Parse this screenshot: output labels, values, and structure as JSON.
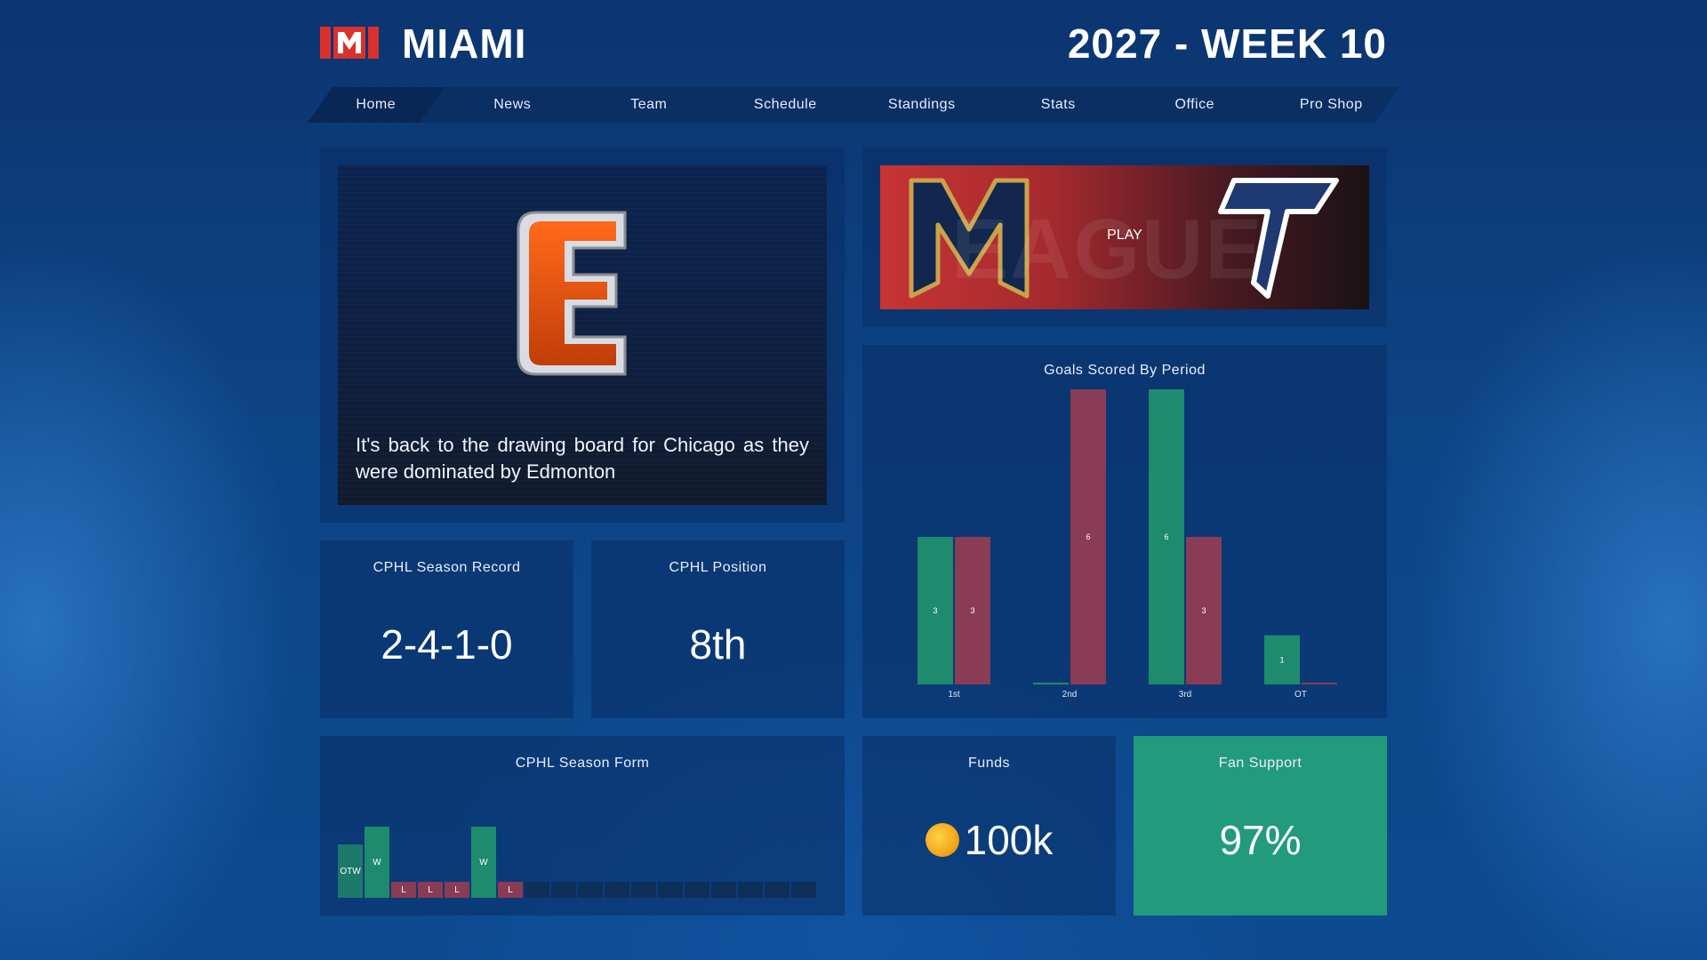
{
  "header": {
    "team_name": "MIAMI",
    "season": "2027 - WEEK 10",
    "brand_color": "#d9312c"
  },
  "nav": {
    "items": [
      {
        "label": "Home",
        "active": true
      },
      {
        "label": "News"
      },
      {
        "label": "Team"
      },
      {
        "label": "Schedule"
      },
      {
        "label": "Standings"
      },
      {
        "label": "Stats"
      },
      {
        "label": "Office"
      },
      {
        "label": "Pro Shop"
      }
    ]
  },
  "news": {
    "logo_letter": "E",
    "logo_color": "#e8520f",
    "headline": "It's back to the drawing board for Chicago as they were dominated by Edmonton"
  },
  "play": {
    "label": "PLAY",
    "left_logo": "M",
    "right_logo": "T"
  },
  "goals_chart": {
    "title": "Goals Scored By Period",
    "chart_data": {
      "type": "bar",
      "title": "Goals Scored By Period",
      "categories": [
        "1st",
        "2nd",
        "3rd",
        "OT"
      ],
      "series": [
        {
          "values": [
            3,
            0,
            6,
            1
          ],
          "color": "#1e8a6e"
        },
        {
          "values": [
            3,
            6,
            3,
            0
          ],
          "color": "#8a3b55"
        }
      ],
      "data_labels": [
        [
          "3",
          "",
          "6",
          "1"
        ],
        [
          "3",
          "6",
          "3",
          ""
        ]
      ],
      "ylim": [
        0,
        6
      ],
      "grid": false
    }
  },
  "record": {
    "title": "CPHL Season Record",
    "value": "2-4-1-0"
  },
  "position": {
    "title": "CPHL Position",
    "value": "8th"
  },
  "form": {
    "title": "CPHL Season Form",
    "results": [
      "OTW",
      "W",
      "L",
      "L",
      "L",
      "W",
      "L"
    ],
    "empty_slots": 11
  },
  "funds": {
    "title": "Funds",
    "value": "100k",
    "icon": "coin-icon"
  },
  "fan_support": {
    "title": "Fan Support",
    "value": "97%",
    "color": "#229a7c"
  }
}
